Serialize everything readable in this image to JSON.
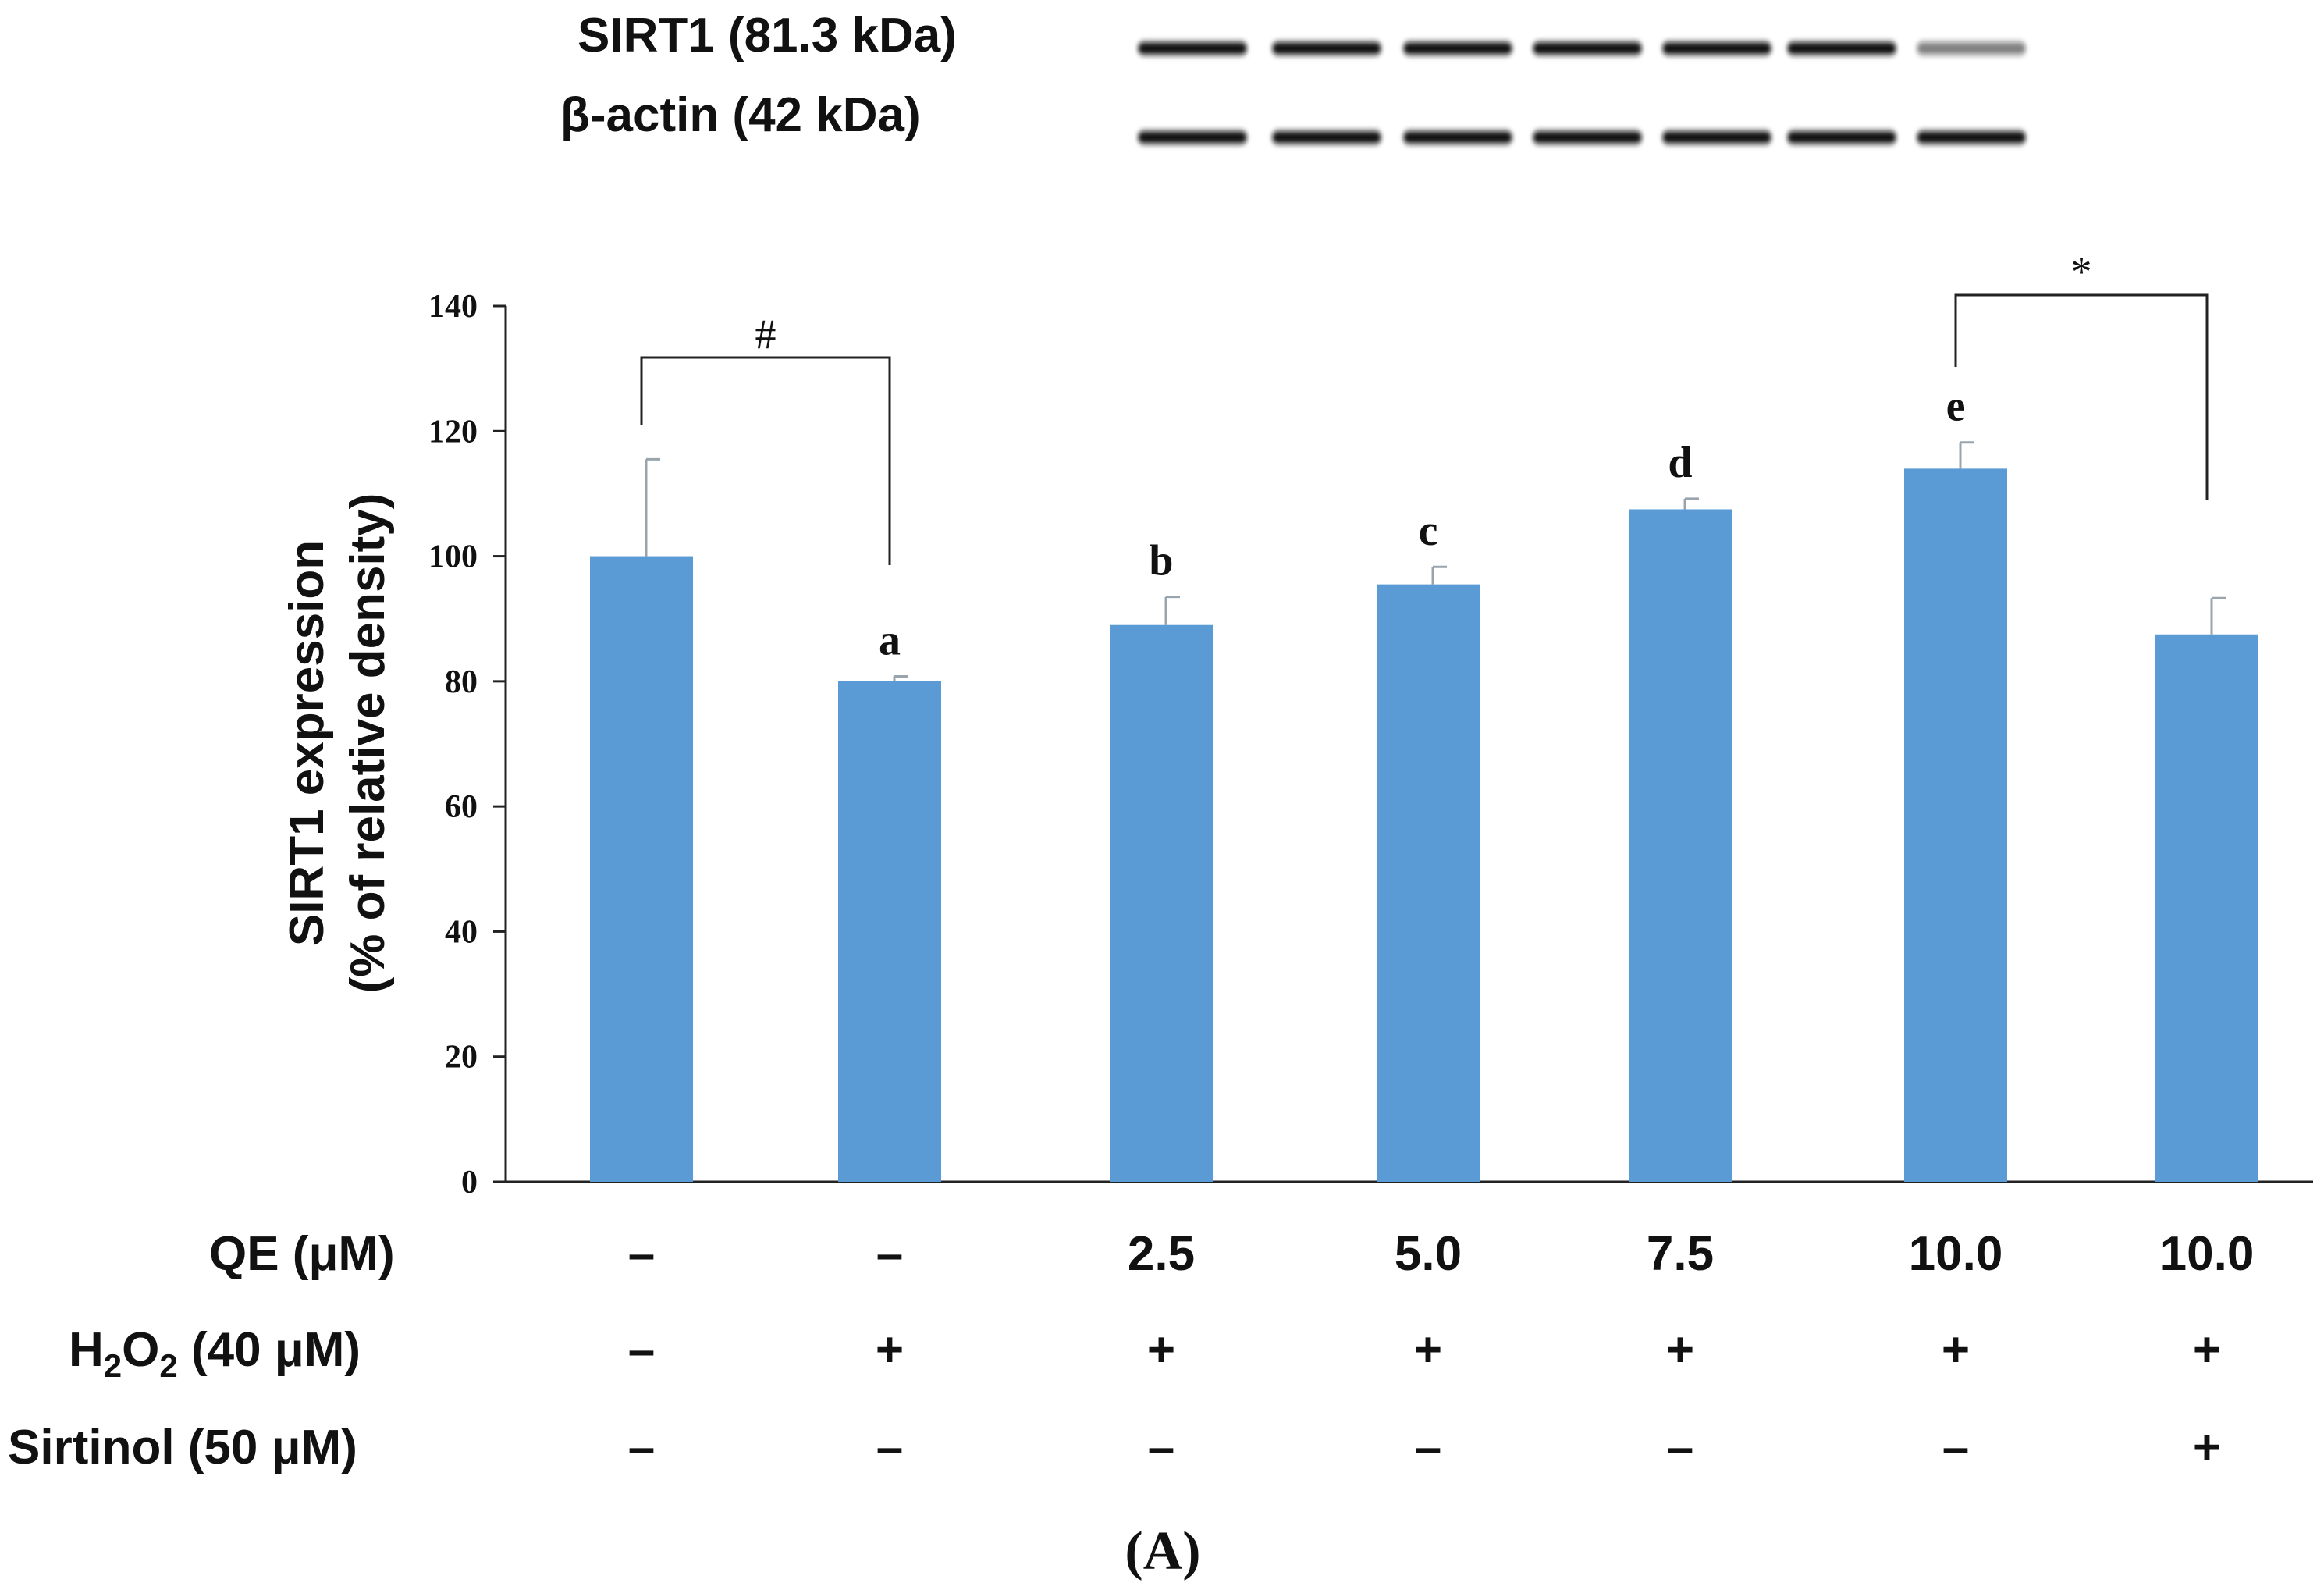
{
  "blot": {
    "lanes": 7,
    "rows": [
      {
        "label": "SIRT1 (81.3 kDa)",
        "intensity": [
          1,
          1,
          1,
          1,
          1,
          1,
          0.55
        ]
      },
      {
        "label": "β-actin (42 kDa)",
        "intensity": [
          1,
          1,
          1,
          1,
          1,
          1,
          1
        ]
      }
    ]
  },
  "chart_data": {
    "type": "bar",
    "title": "",
    "ylabel_line1": "SIRT1 expression",
    "ylabel_line2": "(% of relative density)",
    "xlabel": "",
    "ylim": [
      0,
      140
    ],
    "yticks": [
      0,
      20,
      40,
      60,
      80,
      100,
      120,
      140
    ],
    "values": [
      100,
      80,
      89,
      95.5,
      107.5,
      114,
      87.5
    ],
    "errors": [
      15.5,
      0.8,
      4.5,
      2.8,
      1.7,
      4.2,
      5.8
    ],
    "letters": [
      "",
      "a",
      "b",
      "c",
      "d",
      "e",
      ""
    ],
    "bar_color": "#5b9bd5",
    "comparisons": [
      {
        "from": 0,
        "to": 1,
        "symbol": "#"
      },
      {
        "from": 5,
        "to": 6,
        "symbol": "*"
      }
    ],
    "conditions": [
      {
        "label": "QE (μM)",
        "values": [
          "–",
          "–",
          "2.5",
          "5.0",
          "7.5",
          "10.0",
          "10.0"
        ]
      },
      {
        "label_main": "H",
        "label_sub1": "2",
        "label_mid": "O",
        "label_sub2": "2",
        "label_tail": " (40 μM)",
        "values": [
          "–",
          "+",
          "+",
          "+",
          "+",
          "+",
          "+"
        ]
      },
      {
        "label": "Sirtinol (50 μM)",
        "values": [
          "–",
          "–",
          "–",
          "–",
          "–",
          "–",
          "+"
        ]
      }
    ]
  },
  "panel_label": "(A)"
}
